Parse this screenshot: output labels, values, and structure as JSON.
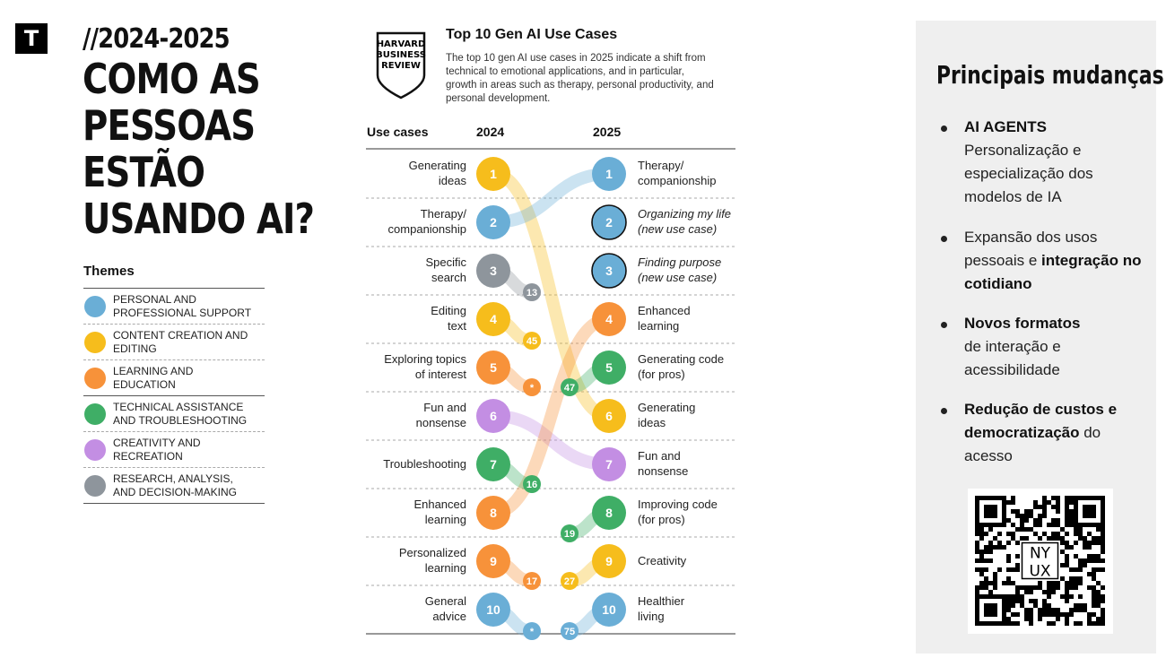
{
  "logo_letter": "T",
  "year_range": "//2024-2025",
  "headline": [
    "COMO AS",
    "PESSOAS",
    "ESTÃO",
    "USANDO AI?"
  ],
  "themes": {
    "title": "Themes",
    "items": [
      {
        "label": "PERSONAL AND PROFESSIONAL SUPPORT",
        "color": "#6aaed6"
      },
      {
        "label": "CONTENT CREATION AND EDITING",
        "color": "#f6bd1c"
      },
      {
        "label": "LEARNING AND EDUCATION",
        "color": "#f7923a"
      },
      {
        "label": "TECHNICAL ASSISTANCE AND TROUBLESHOOTING",
        "color": "#3fae66"
      },
      {
        "label": "CREATIVITY AND RECREATION",
        "color": "#c38ee3"
      },
      {
        "label": "RESEARCH, ANALYSIS, AND DECISION-MAKING",
        "color": "#8e959c"
      }
    ]
  },
  "hbr": {
    "logo_lines": [
      "HARVARD",
      "BUSINESS",
      "REVIEW"
    ]
  },
  "chart": {
    "title": "Top 10 Gen AI Use Cases",
    "subtitle": "The top 10 gen AI use cases in 2025 indicate a shift from technical to emotional applications, and in particular, growth in areas such as therapy, personal productivity, and personal development.",
    "col_use_cases": "Use cases",
    "col_2024": "2024",
    "col_2025": "2025"
  },
  "chart_data": {
    "type": "slope",
    "title": "Top 10 Gen AI Use Cases",
    "years": [
      "2024",
      "2025"
    ],
    "rank_2024": [
      {
        "rank": 1,
        "label": "Generating ideas",
        "theme": "content",
        "rank_2025": 6
      },
      {
        "rank": 2,
        "label": "Therapy/ companionship",
        "theme": "personal",
        "rank_2025": 1
      },
      {
        "rank": 3,
        "label": "Specific search",
        "theme": "research",
        "rank_2025": 13
      },
      {
        "rank": 4,
        "label": "Editing text",
        "theme": "content",
        "rank_2025": 45
      },
      {
        "rank": 5,
        "label": "Exploring topics of interest",
        "theme": "learning",
        "rank_2025": "*"
      },
      {
        "rank": 6,
        "label": "Fun and nonsense",
        "theme": "creativity",
        "rank_2025": 7
      },
      {
        "rank": 7,
        "label": "Troubleshooting",
        "theme": "technical",
        "rank_2025": 16
      },
      {
        "rank": 8,
        "label": "Enhanced learning",
        "theme": "learning",
        "rank_2025": 4
      },
      {
        "rank": 9,
        "label": "Personalized learning",
        "theme": "learning",
        "rank_2025": 17
      },
      {
        "rank": 10,
        "label": "General advice",
        "theme": "personal",
        "rank_2025": "*"
      }
    ],
    "rank_2025": [
      {
        "rank": 1,
        "label": "Therapy/ companionship",
        "theme": "personal",
        "rank_2024": 2
      },
      {
        "rank": 2,
        "label": "Organizing my life (new use case)",
        "theme": "personal",
        "new": true
      },
      {
        "rank": 3,
        "label": "Finding purpose (new use case)",
        "theme": "personal",
        "new": true
      },
      {
        "rank": 4,
        "label": "Enhanced learning",
        "theme": "learning",
        "rank_2024": 8
      },
      {
        "rank": 5,
        "label": "Generating code (for pros)",
        "theme": "technical",
        "rank_2024": 47
      },
      {
        "rank": 6,
        "label": "Generating ideas",
        "theme": "content",
        "rank_2024": 1
      },
      {
        "rank": 7,
        "label": "Fun and nonsense",
        "theme": "creativity",
        "rank_2024": 6
      },
      {
        "rank": 8,
        "label": "Improving code (for pros)",
        "theme": "technical",
        "rank_2024": 19
      },
      {
        "rank": 9,
        "label": "Creativity",
        "theme": "content",
        "rank_2024": 27
      },
      {
        "rank": 10,
        "label": "Healthier living",
        "theme": "personal",
        "rank_2024": 75
      }
    ],
    "theme_colors": {
      "personal": "#6aaed6",
      "content": "#f6bd1c",
      "learning": "#f7923a",
      "technical": "#3fae66",
      "creativity": "#c38ee3",
      "research": "#8e959c"
    }
  },
  "left_labels": [
    [
      "Generating",
      "ideas"
    ],
    [
      "Therapy/",
      "companionship"
    ],
    [
      "Specific",
      "search"
    ],
    [
      "Editing",
      "text"
    ],
    [
      "Exploring topics",
      "of interest"
    ],
    [
      "Fun and",
      "nonsense"
    ],
    [
      "Troubleshooting"
    ],
    [
      "Enhanced",
      "learning"
    ],
    [
      "Personalized",
      "learning"
    ],
    [
      "General",
      "advice"
    ]
  ],
  "right_labels": [
    [
      "Therapy/",
      "companionship"
    ],
    [
      "Organizing my life",
      "(new use case)"
    ],
    [
      "Finding purpose",
      "(new use case)"
    ],
    [
      "Enhanced",
      "learning"
    ],
    [
      "Generating code",
      "(for pros)"
    ],
    [
      "Generating",
      "ideas"
    ],
    [
      "Fun and",
      "nonsense"
    ],
    [
      "Improving code",
      "(for pros)"
    ],
    [
      "Creativity"
    ],
    [
      "Healthier",
      "living"
    ]
  ],
  "panel": {
    "title": "Principais mudanças",
    "bullets": [
      {
        "bold": "AI AGENTS",
        "text": "Personalização e especialização dos modelos de IA"
      },
      {
        "pre": "Expansão dos usos pessoais e ",
        "bold": "integração no cotidiano"
      },
      {
        "bold": "Novos formatos",
        "text": "de interação e acessibilidade"
      },
      {
        "bold": "Redução de custos e democratização",
        "post": " do acesso"
      }
    ],
    "qr_label": [
      "NY",
      "UX"
    ]
  }
}
